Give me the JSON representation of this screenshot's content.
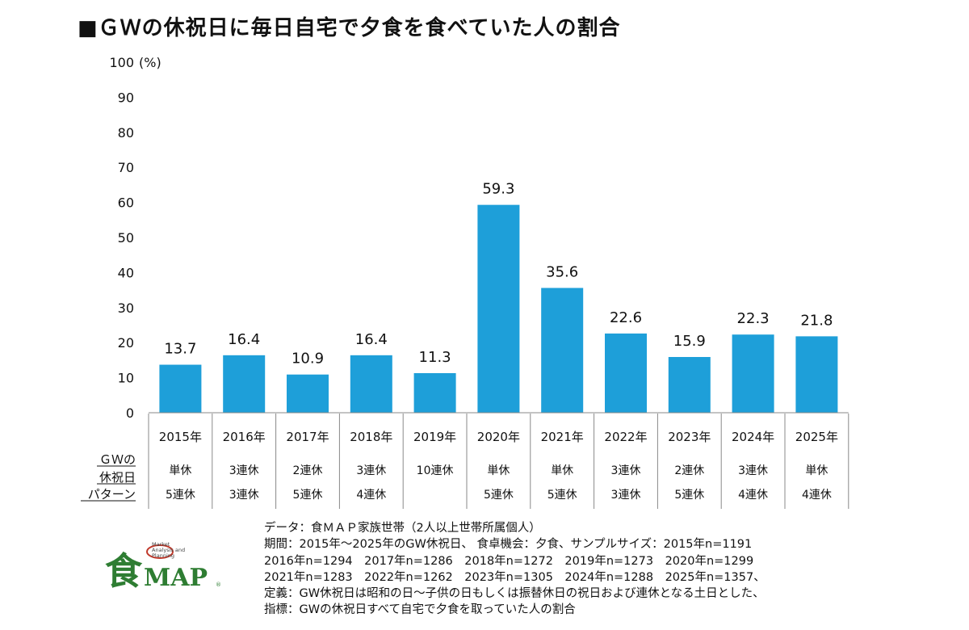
{
  "title": "■ＧＷの休祝日に毎日自宅で夕食を食べていた人の割合",
  "chart_data": {
    "type": "bar",
    "title": "■ＧＷの休祝日に毎日自宅で夕食を食べていた人の割合",
    "ylabel": "(%)",
    "ylim": [
      0,
      100
    ],
    "yticks": [
      0,
      10,
      20,
      30,
      40,
      50,
      60,
      70,
      80,
      90,
      100
    ],
    "categories": [
      "2015年",
      "2016年",
      "2017年",
      "2018年",
      "2019年",
      "2020年",
      "2021年",
      "2022年",
      "2023年",
      "2024年",
      "2025年"
    ],
    "values": [
      13.7,
      16.4,
      10.9,
      16.4,
      11.3,
      59.3,
      35.6,
      22.6,
      15.9,
      22.3,
      21.8
    ],
    "value_labels": [
      "13.7",
      "16.4",
      "10.9",
      "16.4",
      "11.3",
      "59.3",
      "35.6",
      "22.6",
      "15.9",
      "22.3",
      "21.8"
    ],
    "bar_color": "#1e9fd9",
    "pattern_header": [
      "ＧＷの",
      "休祝日",
      "パターン"
    ],
    "pattern_row1": [
      "単休",
      "3連休",
      "2連休",
      "3連休",
      "10連休",
      "単休",
      "単休",
      "3連休",
      "2連休",
      "3連休",
      "単休"
    ],
    "pattern_row2": [
      "5連休",
      "3連休",
      "5連休",
      "4連休",
      "",
      "5連休",
      "5連休",
      "3連休",
      "5連休",
      "4連休",
      "4連休"
    ]
  },
  "notes": [
    "データ：食ＭＡＰ家族世帯（2人以上世帯所属個人）",
    "期間：2015年～2025年のGW休祝日、 食卓機会：夕食、サンプルサイズ：2015年n=1191",
    "2016年n=1294　2017年n=1286　2018年n=1272　2019年n=1273　2020年n=1299",
    "2021年n=1283　2022年n=1262　2023年n=1305　2024年n=1288　2025年n=1357、",
    "定義：GW休祝日は昭和の日～子供の日もしくは振替休日の祝日および連休となる土日とした、",
    "指標：GWの休祝日すべて自宅で夕食を取っていた人の割合"
  ],
  "logo": {
    "kanji": "食",
    "text": "MAP",
    "tagline": [
      "Market",
      "Analysis and",
      "Planning"
    ],
    "registered": "®",
    "green": "#2e7d32",
    "red": "#c0392b"
  }
}
